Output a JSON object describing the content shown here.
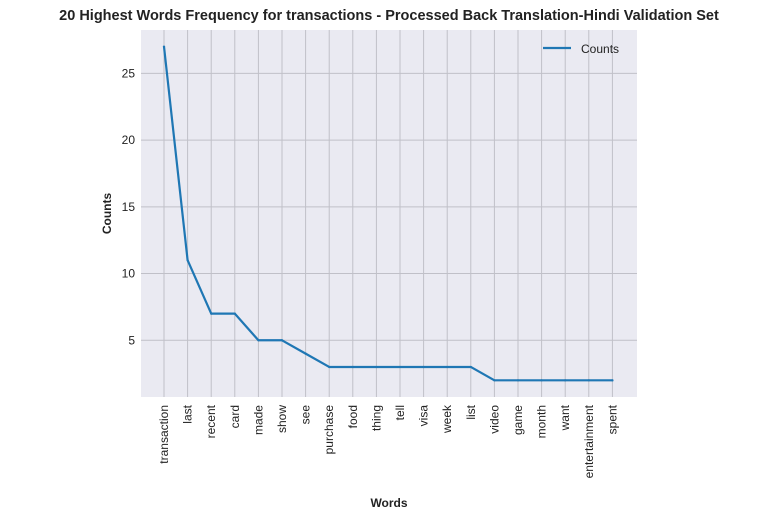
{
  "chart_data": {
    "type": "line",
    "title": "20 Highest Words Frequency for transactions - Processed Back Translation-Hindi Validation Set",
    "xlabel": "Words",
    "ylabel": "Counts",
    "categories": [
      "transaction",
      "last",
      "recent",
      "card",
      "made",
      "show",
      "see",
      "purchase",
      "food",
      "thing",
      "tell",
      "visa",
      "week",
      "list",
      "video",
      "game",
      "month",
      "want",
      "entertainment",
      "spent"
    ],
    "series": [
      {
        "name": "Counts",
        "values": [
          27,
          11,
          7,
          7,
          5,
          5,
          4,
          3,
          3,
          3,
          3,
          3,
          3,
          3,
          2,
          2,
          2,
          2,
          2,
          2
        ]
      }
    ],
    "ylim": [
      0.75,
      28.25
    ],
    "yticks": [
      5,
      10,
      15,
      20,
      25
    ],
    "grid": true,
    "legend_position": "top-right",
    "colors": {
      "line": "#1f77b4",
      "background": "#eaeaf2",
      "grid": "#c0c0c8"
    }
  }
}
